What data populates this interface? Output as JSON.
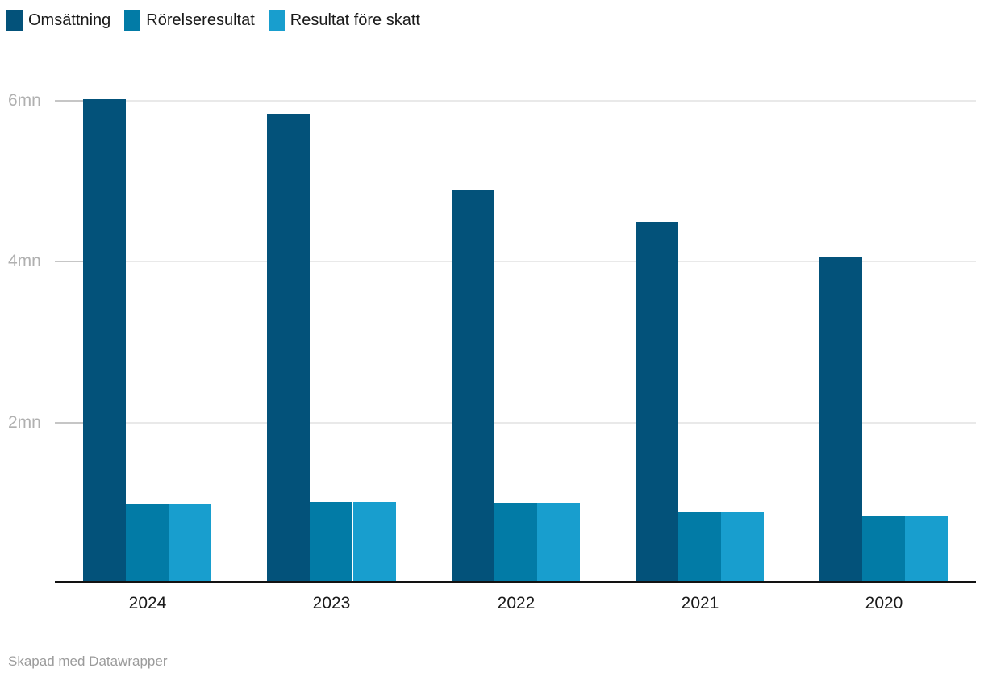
{
  "legend": {
    "items": [
      {
        "label": "Omsättning",
        "color": "#03527a"
      },
      {
        "label": "Rörelseresultat",
        "color": "#027ba6"
      },
      {
        "label": "Resultat före skatt",
        "color": "#189ece"
      }
    ]
  },
  "chart_data": {
    "type": "bar",
    "categories": [
      "2024",
      "2023",
      "2022",
      "2021",
      "2020"
    ],
    "series": [
      {
        "name": "Omsättning",
        "color": "#03527a",
        "values": [
          6.01,
          5.83,
          4.87,
          4.48,
          4.04
        ]
      },
      {
        "name": "Rörelseresultat",
        "color": "#027ba6",
        "values": [
          0.97,
          1.0,
          0.98,
          0.87,
          0.82
        ]
      },
      {
        "name": "Resultat före skatt",
        "color": "#189ece",
        "values": [
          0.97,
          1.0,
          0.98,
          0.87,
          0.82
        ]
      }
    ],
    "title": "",
    "xlabel": "",
    "ylabel": "",
    "unit": "mn",
    "y_ticks": [
      {
        "value": 6,
        "label": "6mn"
      },
      {
        "value": 4,
        "label": "4mn"
      },
      {
        "value": 2,
        "label": "2mn"
      }
    ],
    "ylim": [
      0,
      6.2
    ],
    "grid": true,
    "legend_position": "top-left"
  },
  "footer": {
    "credit": "Skapad med Datawrapper"
  }
}
